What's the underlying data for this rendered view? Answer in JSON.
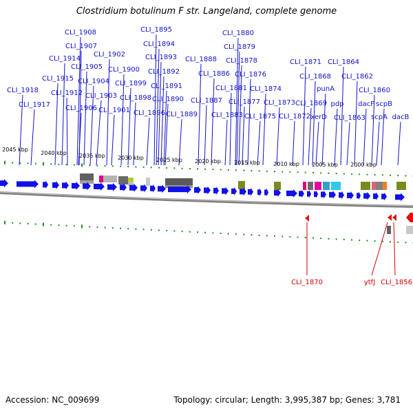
{
  "title": "Clostridium botulinum F str. Langeland, complete genome",
  "footer": {
    "accession": "Accession: NC_009699",
    "topology": "Topology: circular; Length: 3,995,387 bp; Genes: 3,781"
  },
  "colors": {
    "forward_gene": "#1010e8",
    "reverse_gene": "#e01010",
    "tick": "#1f8a1f",
    "backbone": "#808080",
    "label_forward": "#1010cc",
    "label_reverse": "#cc0000"
  },
  "kbp_ticks": [
    "2045 kbp",
    "2040 kbp",
    "2035 kbp",
    "2030 kbp",
    "2025 kbp",
    "2020 kbp",
    "2015 kbp",
    "2010 kbp",
    "2005 kbp",
    "2000 kbp"
  ],
  "forward_labels": [
    "CLI_1908",
    "CLI_1907",
    "CLI_1914",
    "CLI_1905",
    "CLI_1915",
    "CLI_1912",
    "CLI_1906",
    "CLI_1918",
    "CLI_1917",
    "CLI_1904",
    "CLI_1903",
    "CLI_1902",
    "CLI_1900",
    "CLI_1901",
    "CLI_1899",
    "CLI_1898",
    "CLI_1895",
    "CLI_1894",
    "CLI_1893",
    "CLI_1892",
    "CLI_1891",
    "CLI_1890",
    "CLI_1896",
    "CLI_1889",
    "CLI_1888",
    "CLI_1886",
    "CLI_1887",
    "CLI_1880",
    "CLI_1879",
    "CLI_1878",
    "CLI_1876",
    "CLI_1881",
    "CLI_1877",
    "CLI_1883",
    "CLI_1874",
    "CLI_1875",
    "CLI_1873",
    "CLI_1872",
    "CLI_1871",
    "CLI_1868",
    "CLI_1869",
    "punA",
    "xerD",
    "CLI_1864",
    "CLI_1862",
    "pdp",
    "CLI_1863",
    "CLI_1860",
    "dacF",
    "scpB",
    "scpA",
    "dacB"
  ],
  "reverse_labels": [
    "CLI_1870",
    "ytfJ",
    "CLI_1856"
  ]
}
